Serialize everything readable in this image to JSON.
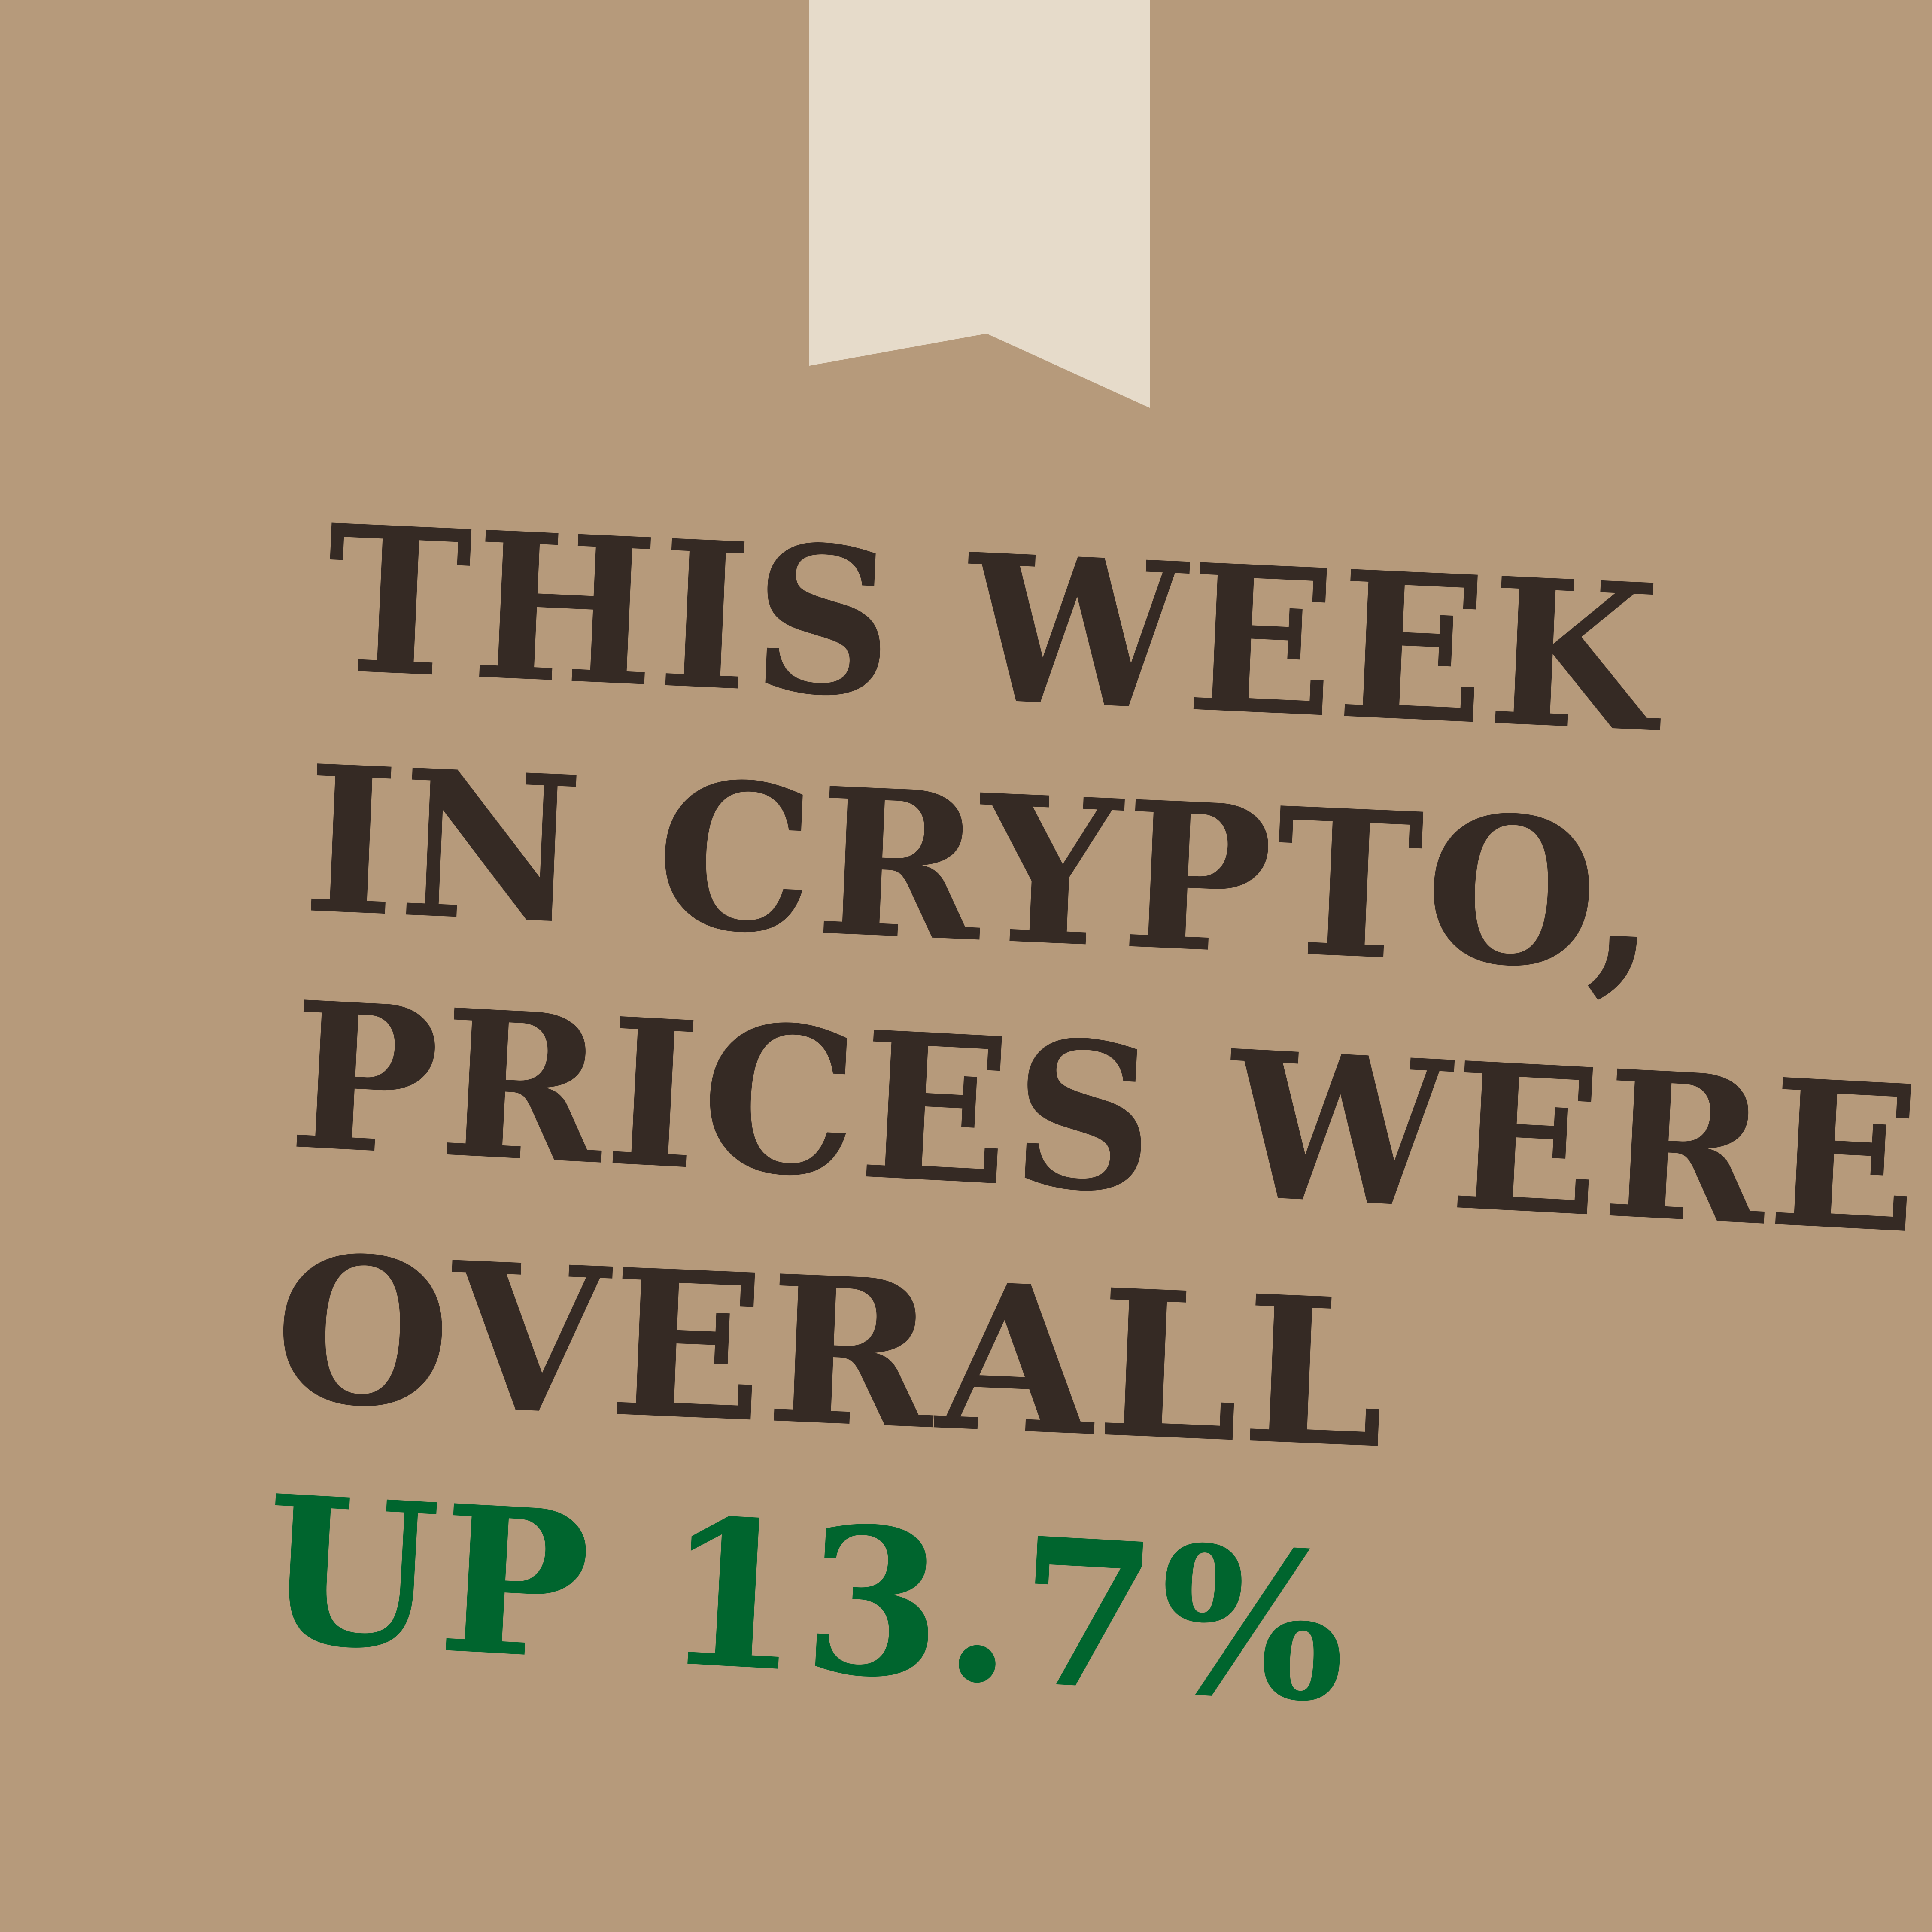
{
  "text_lines": [
    "THIS WEEK",
    "IN CRYPTO,",
    "PRICES WERE",
    "OVERALL",
    "UP 13.7%"
  ],
  "colors": {
    "background": "#b69a7b",
    "bookmark": "#e6dbca",
    "text_dark": "#352a24",
    "text_green": "#00652e"
  },
  "icons": {
    "bookmark": "bookmark-ribbon"
  }
}
